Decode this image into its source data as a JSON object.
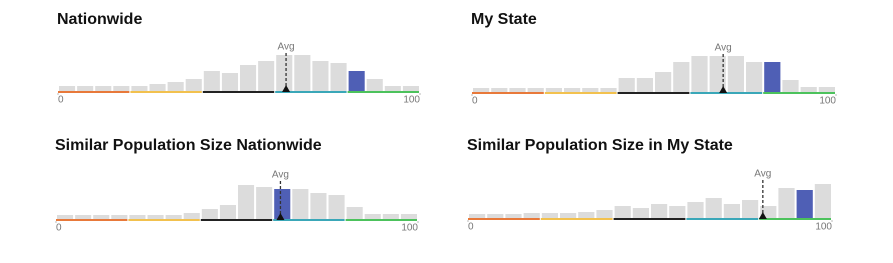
{
  "chart_data": [
    {
      "type": "histogram",
      "title": "Nationwide",
      "bins": [
        0,
        5,
        10,
        15,
        20,
        25,
        30,
        35,
        40,
        45,
        50,
        55,
        60,
        65,
        70,
        75,
        80,
        85,
        90,
        95,
        100
      ],
      "values": [
        5,
        5,
        5,
        5,
        5,
        7,
        9,
        12,
        20,
        18,
        26,
        30,
        36,
        36,
        30,
        28,
        20,
        12,
        5,
        5
      ],
      "color": "#dcdcdc",
      "highlight": 16,
      "highlight_color": "#4f5fb5",
      "annotation": "Avg",
      "avg": 63,
      "xlim": [
        0,
        100
      ],
      "xticks": [
        0,
        100
      ],
      "ylim": [
        0,
        40
      ]
    },
    {
      "type": "histogram",
      "title": "My State",
      "bins": [
        0,
        5,
        10,
        15,
        20,
        25,
        30,
        35,
        40,
        45,
        50,
        55,
        60,
        65,
        70,
        75,
        80,
        85,
        90,
        95,
        100
      ],
      "values": [
        4,
        4,
        4,
        4,
        4,
        4,
        4,
        4,
        14,
        14,
        20,
        30,
        36,
        36,
        36,
        30,
        30,
        12,
        5,
        5
      ],
      "color": "#dcdcdc",
      "highlight": 16,
      "highlight_color": "#4f5fb5",
      "annotation": "Avg",
      "avg": 69,
      "xlim": [
        0,
        100
      ],
      "xticks": [
        0,
        100
      ],
      "ylim": [
        0,
        40
      ]
    },
    {
      "type": "histogram",
      "title": "Similar Population Size Nationwide",
      "bins": [
        0,
        5,
        10,
        15,
        20,
        25,
        30,
        35,
        40,
        45,
        50,
        55,
        60,
        65,
        70,
        75,
        80,
        85,
        90,
        95,
        100
      ],
      "values": [
        4,
        4,
        4,
        4,
        4,
        4,
        4,
        6,
        10,
        14,
        34,
        32,
        30,
        30,
        26,
        24,
        12,
        5,
        5,
        5
      ],
      "color": "#dcdcdc",
      "highlight": 12,
      "highlight_color": "#4f5fb5",
      "annotation": "Avg",
      "avg": 62,
      "xlim": [
        0,
        100
      ],
      "xticks": [
        0,
        100
      ],
      "ylim": [
        0,
        40
      ]
    },
    {
      "type": "histogram",
      "title": "Similar Population Size in My State",
      "bins": [
        0,
        5,
        10,
        15,
        20,
        25,
        30,
        35,
        40,
        45,
        50,
        55,
        60,
        65,
        70,
        75,
        80,
        85,
        90,
        95,
        100
      ],
      "values": [
        4,
        4,
        4,
        5,
        5,
        5,
        6,
        8,
        12,
        10,
        14,
        12,
        16,
        20,
        14,
        18,
        12,
        30,
        28,
        34
      ],
      "color": "#dcdcdc",
      "highlight": 18,
      "highlight_color": "#4f5fb5",
      "annotation": "Avg",
      "avg": 81,
      "xlim": [
        0,
        100
      ],
      "xticks": [
        0,
        100
      ],
      "ylim": [
        0,
        40
      ]
    }
  ]
}
